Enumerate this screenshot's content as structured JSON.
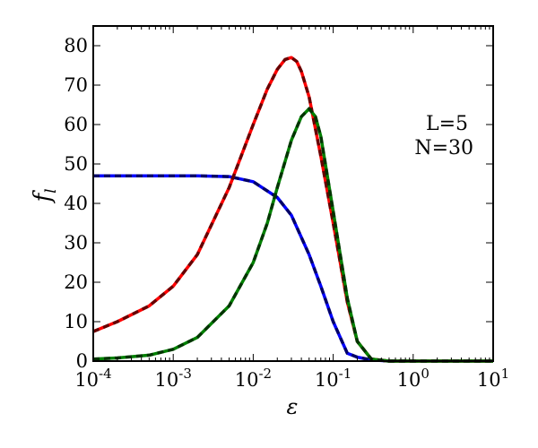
{
  "chart_data": {
    "type": "line",
    "xlabel": "ε",
    "ylabel": "f",
    "ylabel_sub": "l",
    "x_scale": "log",
    "xlim": [
      0.0001,
      10
    ],
    "ylim": [
      0,
      85
    ],
    "x_ticks": [
      {
        "value": 0.0001,
        "base": "10",
        "exp": "-4"
      },
      {
        "value": 0.001,
        "base": "10",
        "exp": "-3"
      },
      {
        "value": 0.01,
        "base": "10",
        "exp": "-2"
      },
      {
        "value": 0.1,
        "base": "10",
        "exp": "-1"
      },
      {
        "value": 1,
        "base": "10",
        "exp": "0"
      },
      {
        "value": 10,
        "base": "10",
        "exp": "1"
      }
    ],
    "y_ticks": [
      0,
      10,
      20,
      30,
      40,
      50,
      60,
      70,
      80
    ],
    "grid": false,
    "annotations": [
      "L=5",
      "N=30"
    ],
    "series": [
      {
        "color": "#0000ff",
        "x": [
          0.0001,
          0.0002,
          0.0005,
          0.001,
          0.002,
          0.005,
          0.01,
          0.02,
          0.03,
          0.05,
          0.07,
          0.1,
          0.15,
          0.2,
          0.3,
          0.5,
          1,
          10
        ],
        "y": [
          47,
          47,
          47,
          47,
          47,
          46.8,
          45.5,
          41.5,
          37,
          27,
          19,
          10,
          2,
          1,
          0.3,
          0,
          0,
          0
        ]
      },
      {
        "color": "#ff0000",
        "x": [
          0.0001,
          0.0002,
          0.0005,
          0.001,
          0.002,
          0.005,
          0.01,
          0.015,
          0.02,
          0.025,
          0.03,
          0.035,
          0.04,
          0.05,
          0.07,
          0.1,
          0.15,
          0.2,
          0.3,
          0.5,
          1,
          10
        ],
        "y": [
          7.5,
          10,
          14,
          19,
          27,
          44,
          60,
          69,
          74,
          76.5,
          77,
          76,
          73.5,
          67,
          52,
          35,
          15,
          5,
          0.5,
          0,
          0,
          0
        ]
      },
      {
        "color": "#008000",
        "x": [
          0.0001,
          0.0002,
          0.0005,
          0.001,
          0.002,
          0.005,
          0.01,
          0.015,
          0.02,
          0.03,
          0.04,
          0.05,
          0.06,
          0.07,
          0.1,
          0.15,
          0.2,
          0.3,
          0.5,
          1,
          10
        ],
        "y": [
          0.5,
          0.8,
          1.5,
          3,
          6,
          14,
          25,
          35,
          44,
          56,
          62,
          64,
          62,
          57,
          38,
          16,
          5,
          0.5,
          0,
          0,
          0
        ]
      }
    ]
  }
}
